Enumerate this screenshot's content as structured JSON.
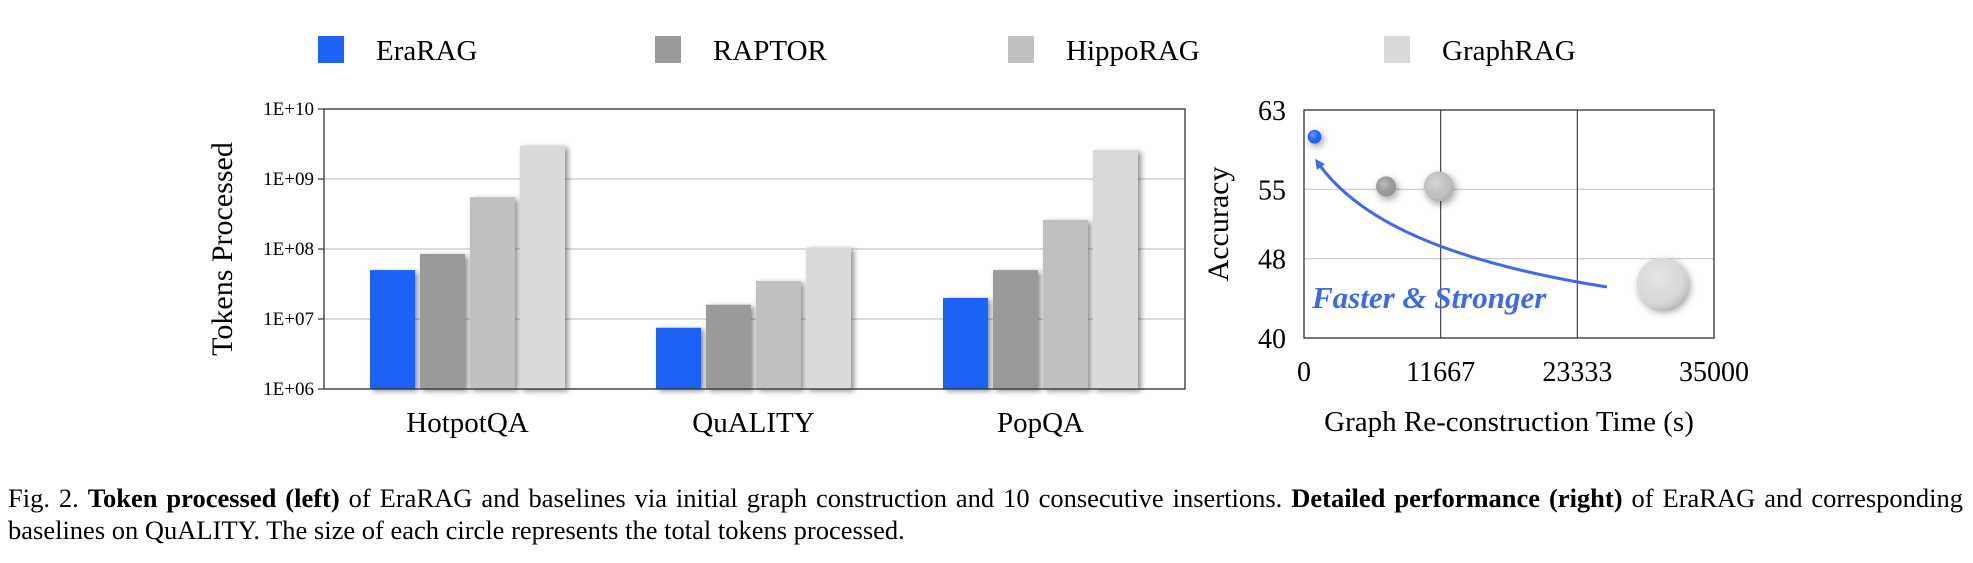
{
  "legend": [
    {
      "label": "EraRAG",
      "color": "#1f62f7"
    },
    {
      "label": "RAPTOR",
      "color": "#9a9a9a"
    },
    {
      "label": "HippoRAG",
      "color": "#c0c0c0"
    },
    {
      "label": "GraphRAG",
      "color": "#d9dbd8"
    }
  ],
  "chart_data": [
    {
      "type": "bar",
      "scale": "log",
      "ylabel": "Tokens Processed",
      "xlabel": "",
      "ylim": [
        1000000,
        10000000000
      ],
      "yticks": [
        {
          "value": 1000000,
          "label": "1E+06"
        },
        {
          "value": 10000000,
          "label": "1E+07"
        },
        {
          "value": 100000000,
          "label": "1E+08"
        },
        {
          "value": 1000000000,
          "label": "1E+09"
        },
        {
          "value": 10000000000,
          "label": "1E+10"
        }
      ],
      "categories": [
        "HotpotQA",
        "QuALITY",
        "PopQA"
      ],
      "series": [
        {
          "name": "EraRAG",
          "values": [
            50000000,
            7500000,
            20000000
          ]
        },
        {
          "name": "RAPTOR",
          "values": [
            85000000,
            16000000,
            50000000
          ]
        },
        {
          "name": "HippoRAG",
          "values": [
            550000000,
            35000000,
            260000000
          ]
        },
        {
          "name": "GraphRAG",
          "values": [
            3000000000,
            105000000,
            2600000000
          ]
        }
      ]
    },
    {
      "type": "scatter",
      "xlabel": "Graph Re-construction Time (s)",
      "ylabel": "Accuracy",
      "xlim": [
        0,
        35000
      ],
      "ylim": [
        40,
        63
      ],
      "xticks": [
        {
          "value": 0,
          "label": "0"
        },
        {
          "value": 11667,
          "label": "11667"
        },
        {
          "value": 23333,
          "label": "23333"
        },
        {
          "value": 35000,
          "label": "35000"
        }
      ],
      "yticks": [
        {
          "value": 40,
          "label": "40"
        },
        {
          "value": 48,
          "label": "48"
        },
        {
          "value": 55,
          "label": "55"
        },
        {
          "value": 63,
          "label": "63"
        }
      ],
      "points": [
        {
          "name": "EraRAG",
          "x": 900,
          "y": 60.3,
          "tokens": 7500000
        },
        {
          "name": "RAPTOR",
          "x": 7000,
          "y": 55.3,
          "tokens": 16000000
        },
        {
          "name": "HippoRAG",
          "x": 11500,
          "y": 55.3,
          "tokens": 35000000
        },
        {
          "name": "GraphRAG",
          "x": 30600,
          "y": 45.5,
          "tokens": 105000000
        }
      ],
      "annotation": {
        "text": "Faster & Stronger",
        "color": "#3d6be6"
      }
    }
  ],
  "caption": {
    "prefix": "Fig. 2.",
    "bold1": "Token processed (left)",
    "text1": " of EraRAG and baselines via initial graph construction and 10 consecutive insertions. ",
    "bold2": "Detailed performance (right)",
    "text2": " of EraRAG and corresponding baselines on QuALITY. The size of each circle represents the total tokens processed."
  }
}
